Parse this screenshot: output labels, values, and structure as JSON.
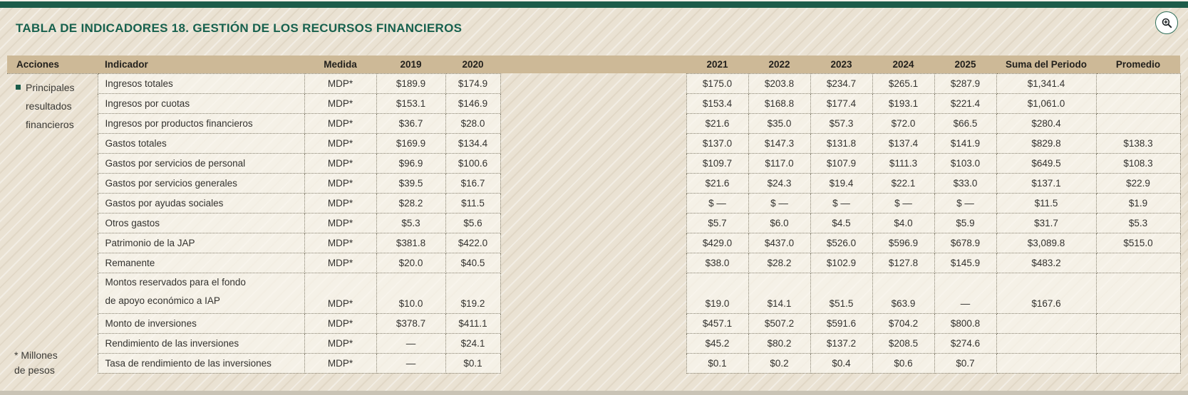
{
  "title": "TABLA DE INDICADORES 18. GESTIÓN DE LOS RECURSOS FINANCIEROS",
  "zoom_button": {
    "icon": "magnifier-plus"
  },
  "colors": {
    "top_bar": "#1d5c4a",
    "title": "#17614e",
    "header_band": "#cdb997",
    "background": "#eae2d3",
    "cell_border": "#85806f",
    "bullet": "#1a5c4a"
  },
  "table": {
    "headers": [
      "Acciones",
      "Indicador",
      "Medida",
      "2019",
      "2020",
      "2021",
      "2022",
      "2023",
      "2024",
      "2025",
      "Suma del Periodo",
      "Promedio"
    ],
    "acciones_label": "Principales\nresultados\nfinancieros",
    "rows": [
      {
        "indicador": "Ingresos totales",
        "medida": "MDP*",
        "values": [
          "$189.9",
          "$174.9",
          "$175.0",
          "$203.8",
          "$234.7",
          "$265.1",
          "$287.9",
          "$1,341.4",
          ""
        ]
      },
      {
        "indicador": "Ingresos por cuotas",
        "medida": "MDP*",
        "values": [
          "$153.1",
          "$146.9",
          "$153.4",
          "$168.8",
          "$177.4",
          "$193.1",
          "$221.4",
          "$1,061.0",
          ""
        ]
      },
      {
        "indicador": "Ingresos por productos financieros",
        "medida": "MDP*",
        "values": [
          "$36.7",
          "$28.0",
          "$21.6",
          "$35.0",
          "$57.3",
          "$72.0",
          "$66.5",
          "$280.4",
          ""
        ]
      },
      {
        "indicador": "Gastos totales",
        "medida": "MDP*",
        "values": [
          "$169.9",
          "$134.4",
          "$137.0",
          "$147.3",
          "$131.8",
          "$137.4",
          "$141.9",
          "$829.8",
          "$138.3"
        ]
      },
      {
        "indicador": "Gastos por servicios de personal",
        "medida": "MDP*",
        "values": [
          "$96.9",
          "$100.6",
          "$109.7",
          "$117.0",
          "$107.9",
          "$111.3",
          "$103.0",
          "$649.5",
          "$108.3"
        ]
      },
      {
        "indicador": "Gastos por servicios generales",
        "medida": "MDP*",
        "values": [
          "$39.5",
          "$16.7",
          "$21.6",
          "$24.3",
          "$19.4",
          "$22.1",
          "$33.0",
          "$137.1",
          "$22.9"
        ]
      },
      {
        "indicador": "Gastos por ayudas sociales",
        "medida": "MDP*",
        "values": [
          "$28.2",
          "$11.5",
          "$ —",
          "$ —",
          "$ —",
          "$ —",
          "$ —",
          "$11.5",
          "$1.9"
        ]
      },
      {
        "indicador": "Otros gastos",
        "medida": "MDP*",
        "values": [
          "$5.3",
          "$5.6",
          "$5.7",
          "$6.0",
          "$4.5",
          "$4.0",
          "$5.9",
          "$31.7",
          "$5.3"
        ]
      },
      {
        "indicador": "Patrimonio de la JAP",
        "medida": "MDP*",
        "values": [
          "$381.8",
          "$422.0",
          "$429.0",
          "$437.0",
          "$526.0",
          "$596.9",
          "$678.9",
          "$3,089.8",
          "$515.0"
        ]
      },
      {
        "indicador": "Remanente",
        "medida": "MDP*",
        "values": [
          "$20.0",
          "$40.5",
          "$38.0",
          "$28.2",
          "$102.9",
          "$127.8",
          "$145.9",
          "$483.2",
          ""
        ]
      },
      {
        "indicador": "Montos reservados para el fondo\nde apoyo económico a IAP",
        "medida": "MDP*",
        "values": [
          "$10.0",
          "$19.2",
          "$19.0",
          "$14.1",
          "$51.5",
          "$63.9",
          "—",
          "$167.6",
          ""
        ]
      },
      {
        "indicador": "Monto de inversiones",
        "medida": "MDP*",
        "values": [
          "$378.7",
          "$411.1",
          "$457.1",
          "$507.2",
          "$591.6",
          "$704.2",
          "$800.8",
          "",
          ""
        ]
      },
      {
        "indicador": "Rendimiento de las inversiones",
        "medida": "MDP*",
        "values": [
          "—",
          "$24.1",
          "$45.2",
          "$80.2",
          "$137.2",
          "$208.5",
          "$274.6",
          "",
          ""
        ]
      },
      {
        "indicador": "Tasa de rendimiento de las inversiones",
        "medida": "MDP*",
        "values": [
          "—",
          "$0.1",
          "$0.1",
          "$0.2",
          "$0.4",
          "$0.6",
          "$0.7",
          "",
          ""
        ]
      }
    ],
    "footnote": "* Millones\nde pesos"
  }
}
